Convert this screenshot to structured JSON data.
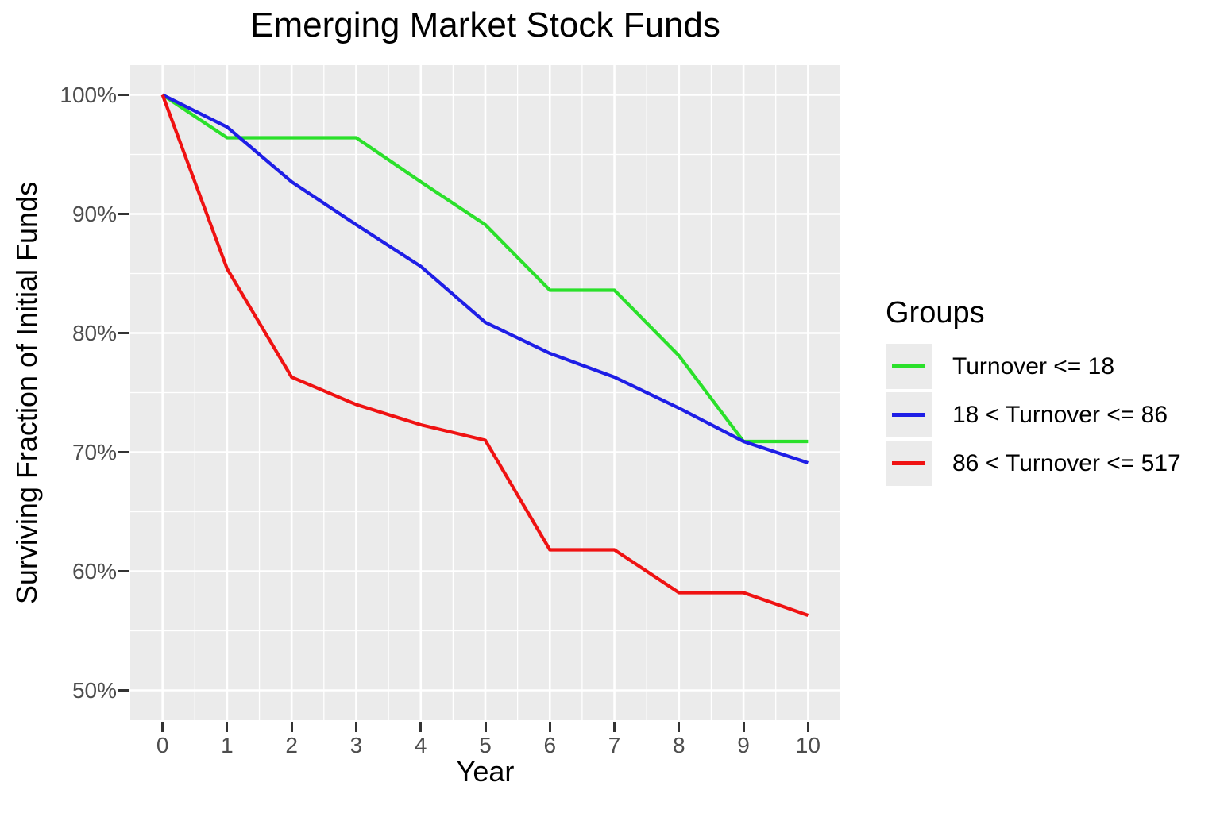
{
  "title": "Emerging Market Stock Funds",
  "axes": {
    "x": {
      "title": "Year",
      "tick_values": [
        0,
        1,
        2,
        3,
        4,
        5,
        6,
        7,
        8,
        9,
        10
      ],
      "tick_labels": [
        "0",
        "1",
        "2",
        "3",
        "4",
        "5",
        "6",
        "7",
        "8",
        "9",
        "10"
      ],
      "minor_ticks": [
        0.5,
        1.5,
        2.5,
        3.5,
        4.5,
        5.5,
        6.5,
        7.5,
        8.5,
        9.5
      ]
    },
    "y": {
      "title": "Surviving Fraction of Initial Funds",
      "tick_values": [
        100,
        90,
        80,
        70,
        60,
        50
      ],
      "tick_labels": [
        "100%",
        "90%",
        "80%",
        "70%",
        "60%",
        "50%"
      ],
      "minor_ticks": [
        95,
        85,
        75,
        65,
        55
      ]
    }
  },
  "legend": {
    "title": "Groups",
    "entries": [
      {
        "label": "Turnover <= 18",
        "color": "#2AE02A"
      },
      {
        "label": "18 < Turnover <= 86",
        "color": "#1E1EE6"
      },
      {
        "label": "86 < Turnover <= 517",
        "color": "#EF1212"
      }
    ]
  },
  "chart_data": {
    "type": "line",
    "title": "Emerging Market Stock Funds",
    "xlabel": "Year",
    "ylabel": "Surviving Fraction of Initial Funds",
    "x": [
      0,
      1,
      2,
      3,
      4,
      5,
      6,
      7,
      8,
      9,
      10
    ],
    "series": [
      {
        "name": "Turnover <= 18",
        "color": "#2AE02A",
        "values": [
          100,
          96.4,
          96.4,
          96.4,
          92.7,
          89.1,
          83.6,
          83.6,
          78.1,
          70.9,
          70.9
        ]
      },
      {
        "name": "18 < Turnover <= 86",
        "color": "#1E1EE6",
        "values": [
          100,
          97.3,
          92.7,
          89.1,
          85.6,
          80.9,
          78.3,
          76.3,
          73.7,
          70.9,
          69.1
        ]
      },
      {
        "name": "86 < Turnover <= 517",
        "color": "#EF1212",
        "values": [
          100,
          85.4,
          76.3,
          74.0,
          72.3,
          71.0,
          61.8,
          61.8,
          58.2,
          58.2,
          56.3
        ]
      }
    ],
    "xlim": [
      -0.5,
      10.5
    ],
    "ylim": [
      47.5,
      102.5
    ],
    "y_unit": "percent",
    "grid": "major-and-minor",
    "legend_position": "right"
  },
  "style": {
    "panel_bg": "#EBEBEB",
    "grid_color": "#FFFFFF",
    "axis_text_color": "#4D4D4D",
    "tick_mark_color": "#333333",
    "title_color": "#000000"
  }
}
